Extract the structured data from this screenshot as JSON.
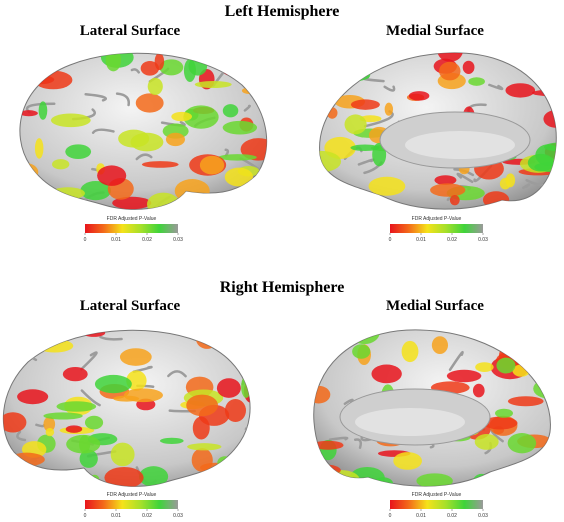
{
  "sections": [
    {
      "title": "Left Hemisphere",
      "panels": [
        {
          "title": "Lateral Surface",
          "colorbar": {
            "label": "FDR Adjusted P-Value",
            "ticks": [
              0,
              0.01,
              0.02,
              0.03
            ]
          }
        },
        {
          "title": "Medial Surface",
          "colorbar": {
            "label": "FDR Adjusted P-Value",
            "ticks": [
              0,
              0.01,
              0.02,
              0.03
            ]
          }
        }
      ]
    },
    {
      "title": "Right Hemisphere",
      "panels": [
        {
          "title": "Lateral Surface",
          "colorbar": {
            "label": "FDR Adjusted P-Value",
            "ticks": [
              0,
              0.01,
              0.02,
              0.03
            ]
          }
        },
        {
          "title": "Medial Surface",
          "colorbar": {
            "label": "FDR Adjusted P-Value",
            "ticks": [
              0,
              0.01,
              0.02,
              0.03
            ]
          }
        }
      ]
    }
  ]
}
